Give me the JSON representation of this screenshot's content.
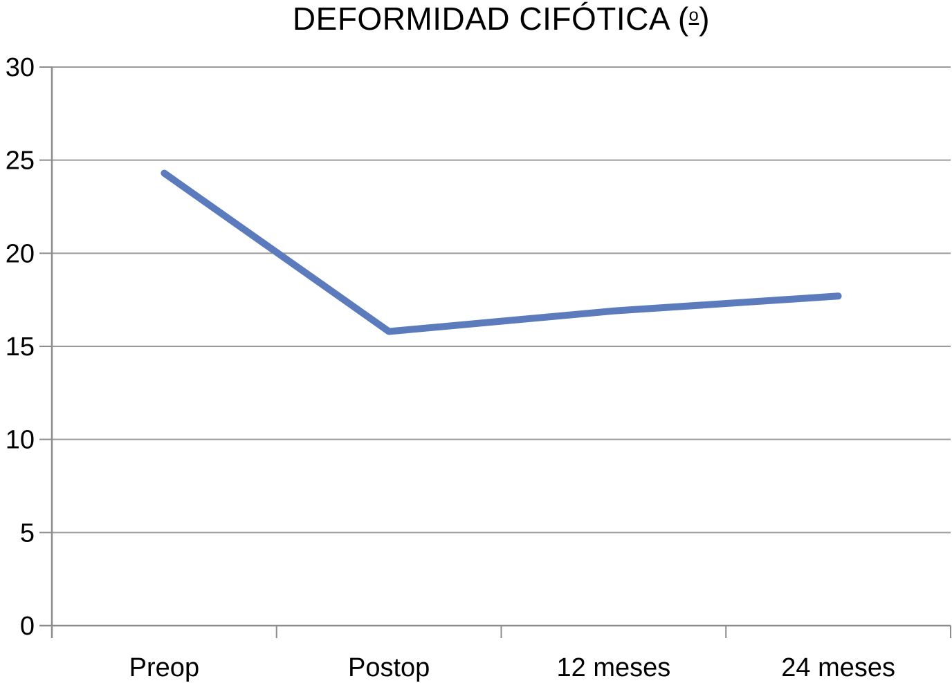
{
  "chart": {
    "title_main": "DEFORMIDAD CIFÓTICA (",
    "title_ordinal": "o",
    "title_close": ")"
  },
  "chart_data": {
    "type": "line",
    "title": "DEFORMIDAD CIFÓTICA (º)",
    "categories": [
      "Preop",
      "Postop",
      "12 meses",
      "24 meses"
    ],
    "values": [
      24.3,
      15.8,
      16.9,
      17.7
    ],
    "xlabel": "",
    "ylabel": "",
    "ylim": [
      0,
      30
    ],
    "yticks": [
      0,
      5,
      10,
      15,
      20,
      25,
      30
    ],
    "grid": true,
    "legend": false,
    "colors": {
      "line": "#5b7bbd",
      "grid": "#9a9a9a",
      "axis": "#8c8c8c",
      "text": "#000000"
    }
  }
}
